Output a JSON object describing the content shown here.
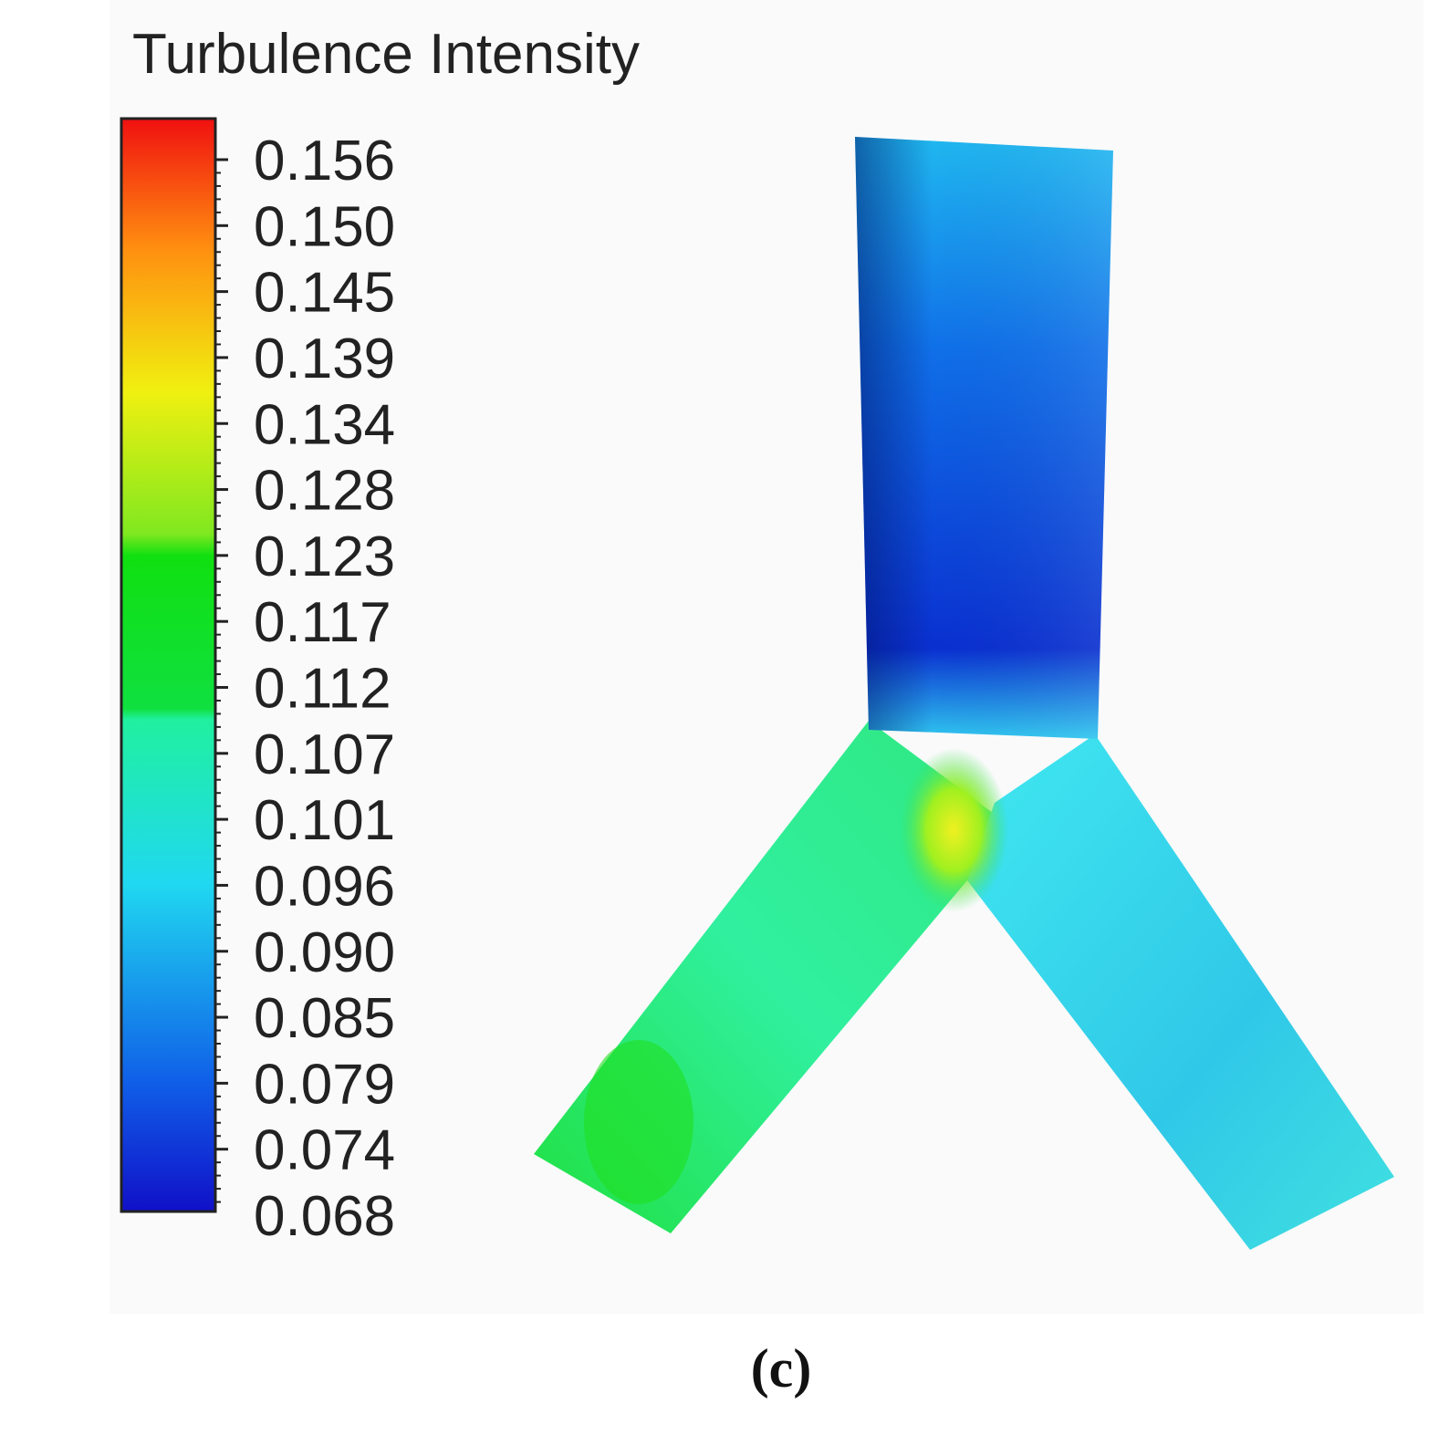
{
  "figure": {
    "title": "Turbulence Intensity",
    "colorbar": {
      "labels": [
        "0.156",
        "0.150",
        "0.145",
        "0.139",
        "0.134",
        "0.128",
        "0.123",
        "0.117",
        "0.112",
        "0.107",
        "0.101",
        "0.096",
        "0.090",
        "0.085",
        "0.079",
        "0.074",
        "0.068"
      ]
    },
    "caption": "(c)"
  }
}
